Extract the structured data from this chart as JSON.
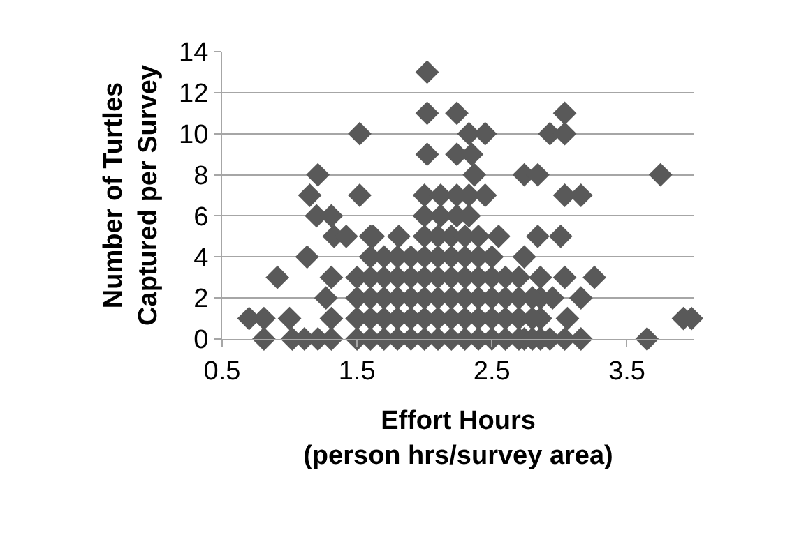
{
  "chart_data": {
    "type": "scatter",
    "xlabel": "Effort Hours\n(person hrs/survey area)",
    "ylabel": "Number of Turtles\nCaptured per Survey",
    "marker": "diamond",
    "grid": "y",
    "xlim": [
      0.5,
      4.0
    ],
    "xticks": [
      0.5,
      1.5,
      2.5,
      3.5
    ],
    "ylim": [
      0,
      14
    ],
    "yticks": [
      0,
      2,
      4,
      6,
      8,
      10,
      12,
      14
    ],
    "series": [
      {
        "color": "#595959",
        "x": [
          0.7,
          0.81,
          0.81,
          0.91,
          1.0,
          1.02,
          1.13,
          1.15,
          1.21,
          1.2,
          1.11,
          1.21,
          1.31,
          1.31,
          1.31,
          1.27,
          1.31,
          1.33,
          1.42,
          1.52,
          1.52,
          1.62,
          1.81,
          2.02,
          2.02,
          2.24,
          2.02,
          2.24,
          2.35,
          2.33,
          2.45,
          2.37,
          2.45,
          2.0,
          2.12,
          2.24,
          2.33,
          2.0,
          2.12,
          2.24,
          2.33,
          2.55,
          2.74,
          2.84,
          2.84,
          3.01,
          2.93,
          3.04,
          3.04,
          3.04,
          3.16,
          2.74,
          3.26,
          3.04,
          3.16,
          3.06,
          3.04,
          3.16,
          2.86,
          2.86,
          2.86,
          2.86,
          2.74,
          2.93,
          2.95,
          3.65,
          3.75,
          3.92,
          3.98,
          1.5,
          1.5,
          1.5,
          1.5,
          1.6,
          1.6,
          1.6,
          1.6,
          1.6,
          1.7,
          1.7,
          1.7,
          1.7,
          1.7,
          1.8,
          1.8,
          1.8,
          1.8,
          1.8,
          1.9,
          1.9,
          1.9,
          1.9,
          1.9,
          2.0,
          2.0,
          2.0,
          2.0,
          2.0,
          2.1,
          2.1,
          2.1,
          2.1,
          2.1,
          2.2,
          2.2,
          2.2,
          2.2,
          2.2,
          2.3,
          2.3,
          2.3,
          2.3,
          2.3,
          2.4,
          2.4,
          2.4,
          2.4,
          2.4,
          2.5,
          2.5,
          2.5,
          2.5,
          2.5,
          2.6,
          2.6,
          2.6,
          2.6,
          2.7,
          2.7,
          2.7,
          2.7,
          2.8,
          2.8,
          2.8,
          1.6,
          2.0,
          2.1,
          2.2,
          2.3,
          2.4
        ],
        "values": [
          1,
          1,
          0,
          3,
          1,
          0,
          4,
          7,
          8,
          6,
          0,
          0,
          0,
          6,
          3,
          2,
          1,
          5,
          5,
          10,
          7,
          5,
          5,
          13,
          11,
          11,
          9,
          9,
          9,
          10,
          10,
          8,
          7,
          7,
          7,
          7,
          7,
          6,
          6,
          6,
          6,
          5,
          8,
          8,
          5,
          5,
          10,
          10,
          11,
          7,
          7,
          4,
          3,
          3,
          2,
          1,
          0,
          0,
          3,
          2,
          1,
          0,
          0,
          0,
          2,
          0,
          8,
          1,
          1,
          0,
          1,
          2,
          3,
          0,
          1,
          2,
          3,
          4,
          0,
          1,
          2,
          3,
          4,
          0,
          1,
          2,
          3,
          4,
          0,
          1,
          2,
          3,
          4,
          0,
          1,
          2,
          3,
          4,
          0,
          1,
          2,
          3,
          4,
          0,
          1,
          2,
          3,
          4,
          0,
          1,
          2,
          3,
          4,
          0,
          1,
          2,
          3,
          4,
          0,
          1,
          2,
          3,
          4,
          0,
          1,
          2,
          3,
          0,
          1,
          2,
          3,
          0,
          1,
          2,
          5,
          5,
          5,
          5,
          5,
          5
        ]
      }
    ]
  }
}
